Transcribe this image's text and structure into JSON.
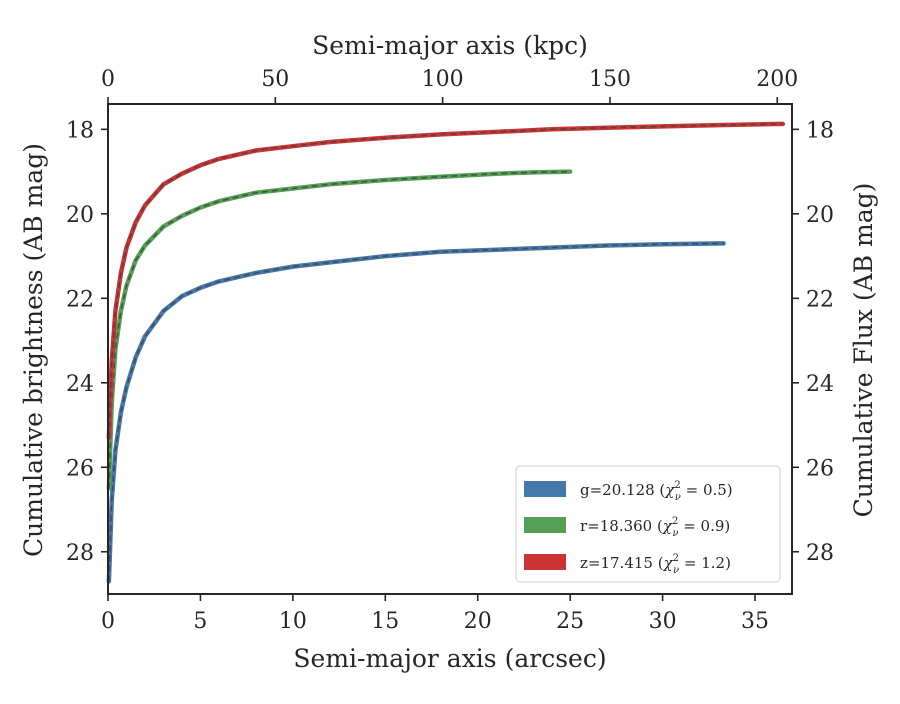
{
  "chart_data": {
    "type": "line",
    "xlabel": "Semi-major axis (arcsec)",
    "ylabel": "Cumulative brightness (AB mag)",
    "x2label": "Semi-major axis (kpc)",
    "y2label": "Cumulative Flux (AB mag)",
    "xlim": [
      0,
      37
    ],
    "ylim": [
      29,
      17.4
    ],
    "y_inverted": true,
    "x2lim": [
      0,
      204.4
    ],
    "x_ticks": [
      "0",
      "5",
      "10",
      "15",
      "20",
      "25",
      "30",
      "35"
    ],
    "x2_ticks": [
      "0",
      "50",
      "100",
      "150",
      "200"
    ],
    "y_ticks": [
      "18",
      "20",
      "22",
      "24",
      "26",
      "28"
    ],
    "y2_ticks": [
      "18",
      "20",
      "22",
      "24",
      "26",
      "28"
    ],
    "legend_position": "lower-right",
    "grid": false,
    "series": [
      {
        "name": "g=20.128 (χ²ν = 0.5)",
        "legend_main": "g=20.128 (",
        "legend_chi": "χ",
        "legend_sup": "2",
        "legend_sub": "ν",
        "legend_rest": " = 0.5)",
        "color": "#4477aa",
        "x": [
          0.05,
          0.2,
          0.4,
          0.7,
          1.0,
          1.5,
          2.0,
          3.0,
          4.0,
          5.0,
          6.0,
          7.0,
          8.0,
          10.0,
          12.0,
          15.0,
          18.0,
          21.0,
          24.0,
          27.0,
          30.0,
          33.3
        ],
        "y": [
          28.7,
          26.8,
          25.6,
          24.7,
          24.1,
          23.4,
          22.9,
          22.3,
          21.95,
          21.75,
          21.6,
          21.5,
          21.4,
          21.25,
          21.15,
          21.0,
          20.9,
          20.85,
          20.8,
          20.75,
          20.72,
          20.7
        ]
      },
      {
        "name": "r=18.360 (χ²ν = 0.9)",
        "legend_main": "r=18.360 (",
        "legend_chi": "χ",
        "legend_sup": "2",
        "legend_sub": "ν",
        "legend_rest": " = 0.9)",
        "color": "#55a055",
        "x": [
          0.05,
          0.2,
          0.4,
          0.7,
          1.0,
          1.5,
          2.0,
          3.0,
          4.0,
          5.0,
          6.0,
          7.0,
          8.0,
          10.0,
          12.0,
          15.0,
          18.0,
          21.0,
          23.0,
          25.0
        ],
        "y": [
          26.5,
          24.5,
          23.2,
          22.3,
          21.7,
          21.1,
          20.75,
          20.3,
          20.05,
          19.85,
          19.7,
          19.6,
          19.5,
          19.4,
          19.3,
          19.2,
          19.12,
          19.05,
          19.02,
          19.0
        ]
      },
      {
        "name": "z=17.415 (χ²ν = 1.2)",
        "legend_main": "z=17.415 (",
        "legend_chi": "χ",
        "legend_sup": "2",
        "legend_sub": "ν",
        "legend_rest": " = 1.2)",
        "color": "#cc3333",
        "x": [
          0.05,
          0.2,
          0.4,
          0.7,
          1.0,
          1.5,
          2.0,
          3.0,
          4.0,
          5.0,
          6.0,
          7.0,
          8.0,
          10.0,
          12.0,
          15.0,
          18.0,
          21.0,
          24.0,
          27.0,
          30.0,
          33.0,
          36.5
        ],
        "y": [
          25.3,
          23.5,
          22.3,
          21.4,
          20.8,
          20.2,
          19.8,
          19.3,
          19.05,
          18.85,
          18.7,
          18.6,
          18.5,
          18.4,
          18.3,
          18.2,
          18.12,
          18.06,
          18.0,
          17.96,
          17.93,
          17.9,
          17.87
        ]
      }
    ]
  }
}
